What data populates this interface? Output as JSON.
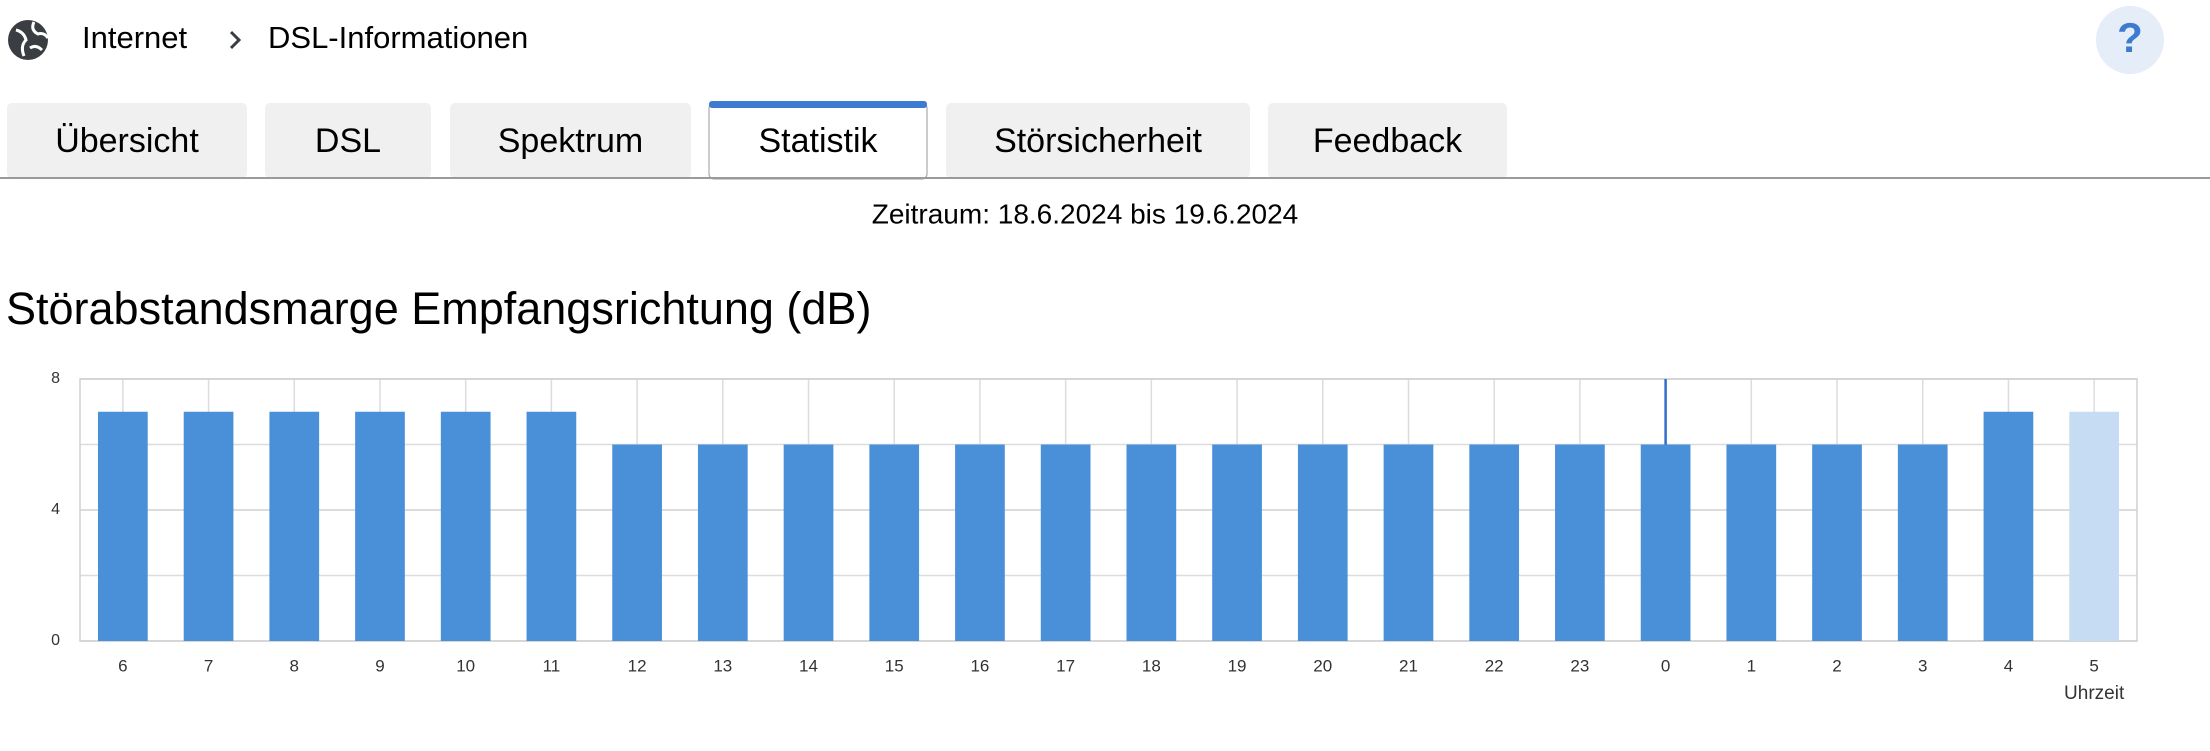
{
  "header": {
    "breadcrumb": [
      "Internet",
      "DSL-Informationen"
    ],
    "help": "?"
  },
  "tabs": [
    "Übersicht",
    "DSL",
    "Spektrum",
    "Statistik",
    "Störsicherheit",
    "Feedback"
  ],
  "active_tab": 3,
  "period": "Zeitraum: 18.6.2024 bis 19.6.2024",
  "chart_data": {
    "type": "bar",
    "title": "Störabstandsmarge Empfangsrichtung (dB)",
    "x_label": "Uhrzeit",
    "categories": [
      "6",
      "7",
      "8",
      "9",
      "10",
      "11",
      "12",
      "13",
      "14",
      "15",
      "16",
      "17",
      "18",
      "19",
      "20",
      "21",
      "22",
      "23",
      "0",
      "1",
      "2",
      "3",
      "4",
      "5"
    ],
    "values": [
      7,
      7,
      7,
      7,
      7,
      7,
      6,
      6,
      6,
      6,
      6,
      6,
      6,
      6,
      6,
      6,
      6,
      6,
      6,
      6,
      6,
      6,
      7,
      7
    ],
    "colors": [
      "#4a90d9",
      "#4a90d9",
      "#4a90d9",
      "#4a90d9",
      "#4a90d9",
      "#4a90d9",
      "#4a90d9",
      "#4a90d9",
      "#4a90d9",
      "#4a90d9",
      "#4a90d9",
      "#4a90d9",
      "#4a90d9",
      "#4a90d9",
      "#4a90d9",
      "#4a90d9",
      "#4a90d9",
      "#4a90d9",
      "#4a90d9",
      "#4a90d9",
      "#4a90d9",
      "#4a90d9",
      "#4a90d9",
      "#c6dcf2"
    ],
    "ylim": [
      0,
      8
    ],
    "yticks": [
      0,
      4,
      8
    ],
    "minor_yticks": [
      2,
      6
    ],
    "grid": true
  }
}
